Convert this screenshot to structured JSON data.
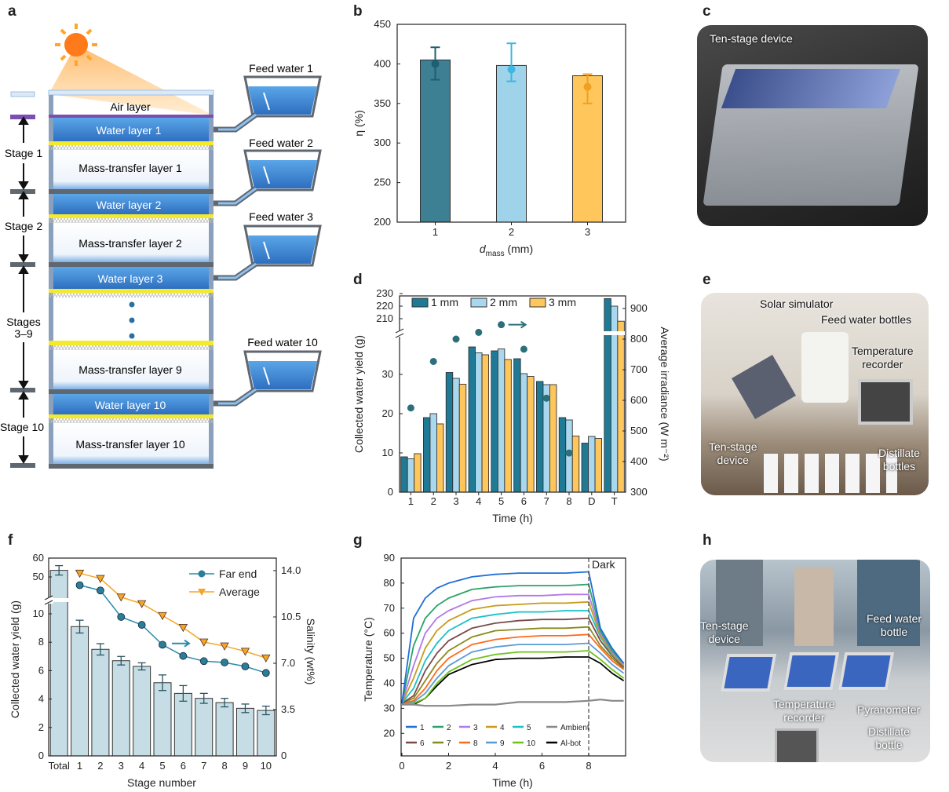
{
  "panel_letters": {
    "a": "a",
    "b": "b",
    "c": "c",
    "d": "d",
    "e": "e",
    "f": "f",
    "g": "g",
    "h": "h"
  },
  "panel_a": {
    "air_layer": "Air layer",
    "layers": [
      "Water layer 1",
      "Mass-transfer layer 1",
      "Water layer 2",
      "Mass-transfer layer 2",
      "Water layer 3",
      "Mass-transfer layer 9",
      "Water layer 10",
      "Mass-transfer layer 10"
    ],
    "feed_water": [
      "Feed water 1",
      "Feed water 2",
      "Feed water 3",
      "Feed water 10"
    ],
    "stages": [
      "Stage 1",
      "Stage 2",
      "Stages",
      "3–9",
      "Stage 10"
    ],
    "colors": {
      "water": "#3a86d4",
      "yellow": "#f3ea2a",
      "purple": "#7a4fb0",
      "plate": "#5f6770",
      "sun": "#ff7a1a"
    }
  },
  "panel_c": {
    "label": "Ten-stage device"
  },
  "panel_e": {
    "labels": [
      "Solar simulator",
      "Feed water bottles",
      "Temperature",
      "recorder",
      "Ten-stage",
      "device",
      "Distillate",
      "bottles"
    ]
  },
  "panel_h": {
    "labels": [
      "Ten-stage",
      "device",
      "Feed water",
      "bottle",
      "Temperature",
      "recorder",
      "Pyranometer",
      "Distillate",
      "bottle"
    ]
  },
  "chart_data": [
    {
      "id": "b",
      "type": "bar",
      "categories": [
        "1",
        "2",
        "3"
      ],
      "values": [
        405,
        398,
        385
      ],
      "points": [
        400,
        393,
        371
      ],
      "errors": [
        [
          380,
          421
        ],
        [
          378,
          426
        ],
        [
          350,
          387
        ]
      ],
      "xlabel": "d",
      "xlabel_sub": "mass",
      "xlabel_unit": "(mm)",
      "ylabel": "η (%)",
      "ylim": [
        200,
        450
      ],
      "yticks": [
        200,
        250,
        300,
        350,
        400,
        450
      ],
      "colors": [
        "#3d7f93",
        "#9fd3ea",
        "#ffc65c"
      ],
      "error_colors": [
        "#1f5f73",
        "#3db6e0",
        "#f0a020"
      ]
    },
    {
      "id": "d",
      "type": "bar",
      "categories": [
        "1",
        "2",
        "3",
        "4",
        "5",
        "6",
        "7",
        "8",
        "D",
        "T"
      ],
      "series": [
        {
          "name": "1 mm",
          "values": [
            9,
            19,
            30.5,
            37,
            36,
            34,
            28.2,
            19,
            12.5,
            226
          ],
          "color": "#1f7a96"
        },
        {
          "name": "2 mm",
          "values": [
            8.5,
            20,
            29,
            35.5,
            36.5,
            30.2,
            27.4,
            18.4,
            14.2,
            220
          ],
          "color": "#a9d8ee"
        },
        {
          "name": "3 mm",
          "values": [
            9.8,
            17.4,
            27.5,
            35,
            33.8,
            29.5,
            27.4,
            14.3,
            13.7,
            208
          ],
          "color": "#ffc65c"
        }
      ],
      "irradiance": {
        "categories": [
          "1",
          "2",
          "3",
          "4",
          "5",
          "6",
          "7",
          "8"
        ],
        "values": [
          575,
          727,
          800,
          822,
          847,
          767,
          607,
          428
        ],
        "color": "#2b6f7a"
      },
      "xlabel": "Time (h)",
      "ylabel": "Collected water yield (g)",
      "y2label": "Average irradiance (W m⁻²)",
      "ylim_lower": [
        0,
        38
      ],
      "ylim_upper": [
        205,
        230
      ],
      "yticks_lower": [
        0,
        10,
        20,
        30
      ],
      "yticks_upper": [
        210,
        220,
        230
      ],
      "y2lim": [
        300,
        950
      ],
      "y2ticks": [
        300,
        400,
        500,
        600,
        700,
        800,
        900
      ],
      "legend": "top"
    },
    {
      "id": "f",
      "type": "bar",
      "categories": [
        "Total",
        "1",
        "2",
        "3",
        "4",
        "5",
        "6",
        "7",
        "8",
        "9",
        "10"
      ],
      "values": [
        53.5,
        9.1,
        7.5,
        6.7,
        6.3,
        5.15,
        4.4,
        4.05,
        3.75,
        3.35,
        3.2
      ],
      "errors": [
        2.5,
        0.45,
        0.4,
        0.3,
        0.25,
        0.55,
        0.55,
        0.35,
        0.3,
        0.3,
        0.3
      ],
      "bar_color": "#c6dde5",
      "salinity": [
        {
          "name": "Far end",
          "categories": [
            "1",
            "2",
            "3",
            "4",
            "5",
            "6",
            "7",
            "8",
            "9",
            "10"
          ],
          "values": [
            12.9,
            12.5,
            10.5,
            9.9,
            8.4,
            7.55,
            7.16,
            7.06,
            6.76,
            6.27
          ],
          "color": "#2a8aa8",
          "marker": "circle"
        },
        {
          "name": "Average",
          "categories": [
            "1",
            "2",
            "3",
            "4",
            "5",
            "6",
            "7",
            "8",
            "9",
            "10"
          ],
          "values": [
            13.8,
            13.4,
            12.0,
            11.5,
            10.6,
            9.7,
            8.6,
            8.3,
            7.9,
            7.4
          ],
          "color": "#f5a623",
          "marker": "triangle-down"
        }
      ],
      "xlabel": "Stage number",
      "ylabel": "Collected water yield (g)",
      "y2label": "Salinity (wt%)",
      "ylim_lower": [
        0,
        11.5
      ],
      "ylim_upper": [
        47,
        60
      ],
      "yticks_lower": [
        0,
        2,
        4,
        6,
        8,
        10
      ],
      "yticks_upper": [
        50,
        60
      ],
      "y2lim": [
        0,
        14.0
      ],
      "y2ticks": [
        "0",
        "3.5",
        "7.0",
        "10.5",
        "14.0"
      ],
      "legend": "top-right"
    },
    {
      "id": "g",
      "type": "line",
      "x": [
        0,
        0.5,
        1,
        1.5,
        2,
        3,
        4,
        5,
        6,
        7,
        8,
        8.5,
        9,
        9.5
      ],
      "series": [
        {
          "name": "1",
          "color": "#1f6fd6",
          "values": [
            32,
            66,
            74,
            78,
            80,
            82.5,
            83.5,
            84,
            84,
            84,
            84.5,
            62,
            54,
            48
          ]
        },
        {
          "name": "2",
          "color": "#2aa46b",
          "values": [
            32,
            55,
            66,
            71,
            74,
            77.5,
            78.5,
            79,
            79,
            79,
            79.5,
            61,
            53,
            48
          ]
        },
        {
          "name": "3",
          "color": "#b27ae6",
          "values": [
            32,
            47,
            60,
            66,
            69,
            73,
            74.5,
            75,
            75,
            75.5,
            75.5,
            60,
            52.5,
            47.5
          ]
        },
        {
          "name": "4",
          "color": "#c99a1a",
          "values": [
            32,
            42,
            54,
            61,
            65,
            69.5,
            71,
            71.5,
            72,
            72,
            72.5,
            59,
            52,
            47
          ]
        },
        {
          "name": "5",
          "color": "#18c1c9",
          "values": [
            32,
            38,
            49,
            56,
            61,
            66,
            67.5,
            68.5,
            68.5,
            69,
            69,
            58.5,
            51.5,
            47
          ]
        },
        {
          "name": "6",
          "color": "#7a4a4a",
          "values": [
            32,
            35,
            45,
            52,
            57,
            62,
            64,
            65,
            65.5,
            65.5,
            66,
            57,
            51,
            46.5
          ]
        },
        {
          "name": "7",
          "color": "#8a8a1a",
          "values": [
            32,
            34,
            41,
            48,
            53,
            58.5,
            61,
            61.5,
            62,
            62,
            62.5,
            55,
            50,
            46
          ]
        },
        {
          "name": "8",
          "color": "#ff6a1a",
          "values": [
            32,
            33,
            38,
            45,
            50,
            55.5,
            57.5,
            58.5,
            59,
            59,
            59.5,
            54,
            49,
            45.5
          ]
        },
        {
          "name": "9",
          "color": "#5b9bd5",
          "values": [
            32,
            32.5,
            36,
            42,
            47,
            52.5,
            54.5,
            55.5,
            55.5,
            55.5,
            56,
            52,
            47.5,
            44
          ]
        },
        {
          "name": "10",
          "color": "#6cc31a",
          "values": [
            32,
            32,
            34,
            40,
            44.5,
            49.5,
            51.5,
            52.5,
            52.5,
            52.5,
            53,
            49.5,
            45.5,
            42
          ]
        },
        {
          "name": "Ambient",
          "color": "#888888",
          "values": [
            31.5,
            31.5,
            31,
            31,
            31,
            31.5,
            31.5,
            32.5,
            32.5,
            32.5,
            33,
            33.5,
            33,
            33
          ]
        },
        {
          "name": "Al-bot",
          "color": "#000000",
          "values": [
            32,
            31.5,
            34,
            39,
            43.5,
            47.5,
            49.5,
            50,
            50,
            50.5,
            50.5,
            48,
            44,
            41
          ]
        }
      ],
      "annotation": "Dark",
      "annotation_x": 8,
      "xlabel": "Time (h)",
      "ylabel": "Temperature (°C)",
      "xlim": [
        0,
        9.6
      ],
      "ylim": [
        11,
        90
      ],
      "xticks": [
        0,
        2,
        4,
        6,
        8
      ],
      "yticks": [
        20,
        30,
        40,
        50,
        60,
        70,
        80,
        90
      ],
      "legend": "bottom"
    }
  ]
}
